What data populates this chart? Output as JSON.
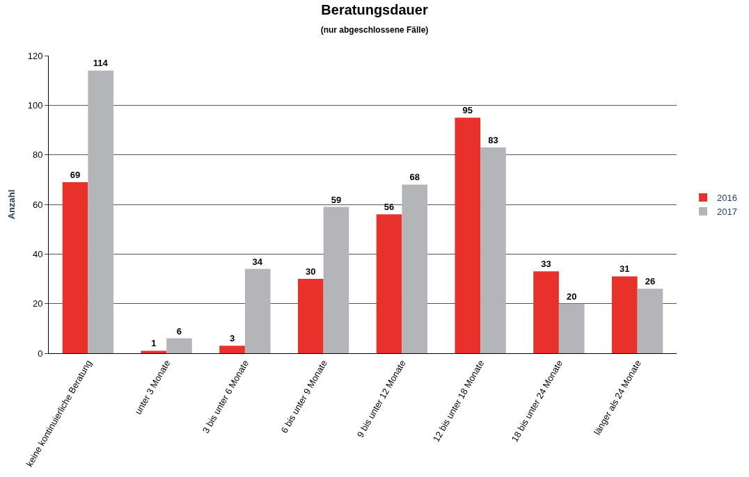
{
  "chart_data": {
    "type": "bar",
    "title": "Beratungsdauer",
    "subtitle": "(nur abgeschlossene Fälle)",
    "ylabel": "Anzahl",
    "categories": [
      "keine kontinuierliche Beratung",
      "unter 3 Monate",
      "3 bis unter 6 Monate",
      "6 bis unter 9 Monate",
      "9 bis unter 12 Monate",
      "12 bis unter 18 Monate",
      "18 bis unter 24 Monate",
      "länger als 24 Monate"
    ],
    "series": [
      {
        "name": "2016",
        "color": "#e8312a",
        "values": [
          69,
          1,
          3,
          30,
          56,
          95,
          33,
          31
        ]
      },
      {
        "name": "2017",
        "color": "#b3b5b8",
        "values": [
          114,
          6,
          34,
          59,
          68,
          83,
          20,
          26
        ]
      }
    ],
    "ylim": [
      0,
      120
    ],
    "yticks": [
      0,
      20,
      40,
      60,
      80,
      100,
      120
    ],
    "grid": "y",
    "legend": "right",
    "data_labels": true
  }
}
